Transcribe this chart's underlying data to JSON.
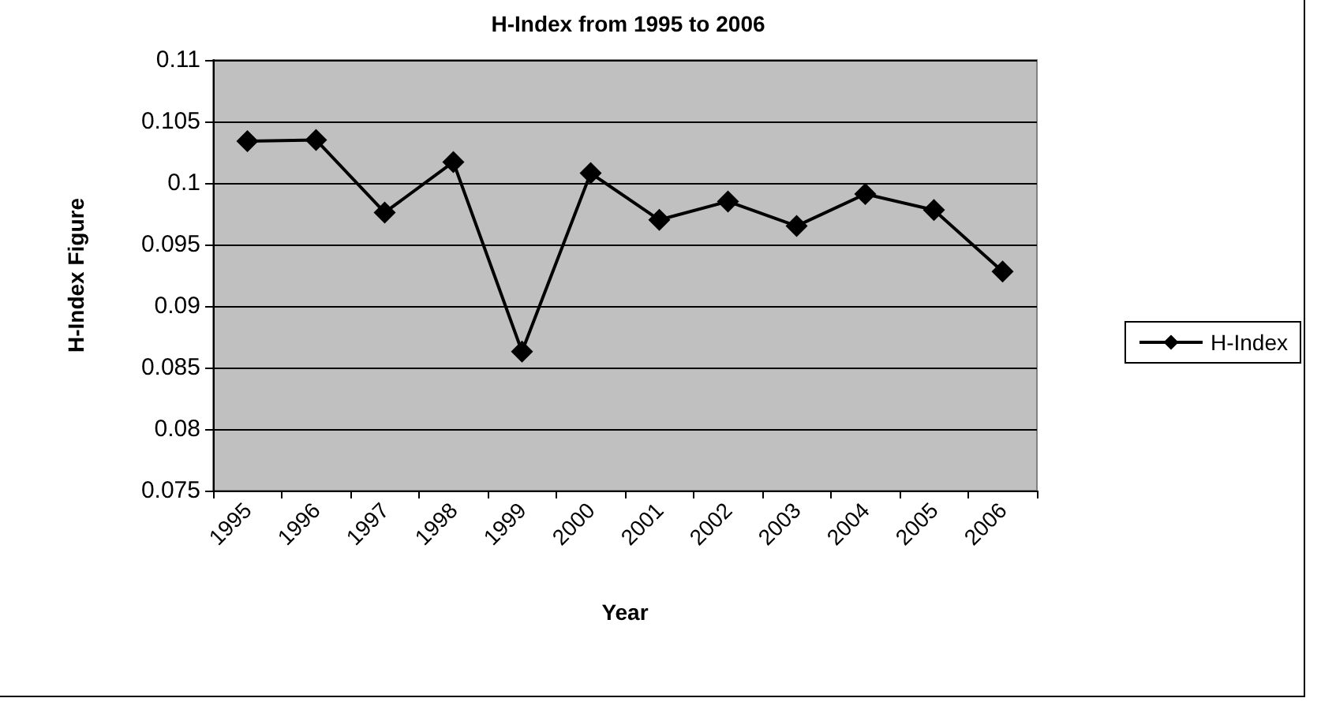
{
  "chart_data": {
    "type": "line",
    "title": "H-Index from 1995 to 2006",
    "xlabel": "Year",
    "ylabel": "H-Index Figure",
    "categories": [
      "1995",
      "1996",
      "1997",
      "1998",
      "1999",
      "2000",
      "2001",
      "2002",
      "2003",
      "2004",
      "2005",
      "2006"
    ],
    "series": [
      {
        "name": "H-Index",
        "color": "#000000",
        "values": [
          0.1034,
          0.1035,
          0.0976,
          0.1017,
          0.0863,
          0.1008,
          0.097,
          0.0985,
          0.0965,
          0.0991,
          0.0978,
          0.0928
        ]
      }
    ],
    "ylim": [
      0.075,
      0.11
    ],
    "yticks": [
      0.075,
      0.08,
      0.085,
      0.09,
      0.095,
      0.1,
      0.105,
      0.11
    ],
    "grid": "y",
    "legend": "right",
    "marker": "diamond",
    "line_style": "solid"
  }
}
